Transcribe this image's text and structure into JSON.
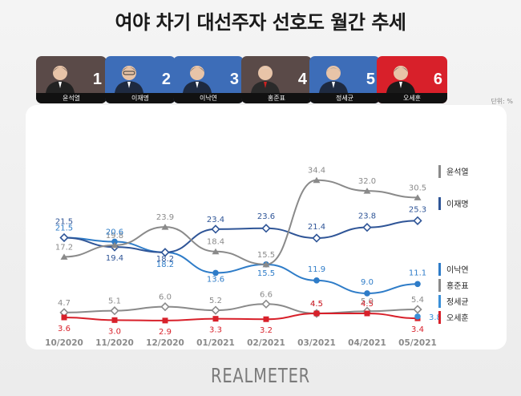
{
  "title": "여야 차기 대선주자 선호도 월간 추세",
  "unit_label": "단위: %",
  "brand": "REALMETER",
  "candidates": [
    {
      "name": "윤석열",
      "rank": "1",
      "color": "#5a4a48"
    },
    {
      "name": "이재명",
      "rank": "2",
      "color": "#3d6db8"
    },
    {
      "name": "이낙연",
      "rank": "3",
      "color": "#3d6db8"
    },
    {
      "name": "홍준표",
      "rank": "4",
      "color": "#5a4a48"
    },
    {
      "name": "정세균",
      "rank": "5",
      "color": "#3d6db8"
    },
    {
      "name": "오세훈",
      "rank": "6",
      "color": "#d8202a"
    }
  ],
  "chart_data": {
    "type": "line",
    "title": "여야 차기 대선주자 선호도 월간 추세",
    "xlabel": "",
    "ylabel": "",
    "unit": "%",
    "categories": [
      "10/2020",
      "11/2020",
      "12/2020",
      "01/2021",
      "02/2021",
      "03/2021",
      "04/2021",
      "05/2021"
    ],
    "ylim": [
      0,
      40
    ],
    "grid": false,
    "legend_position": "right",
    "series": [
      {
        "name": "윤석열",
        "values": [
          17.2,
          19.8,
          23.9,
          18.4,
          15.5,
          34.4,
          32.0,
          30.5
        ],
        "labels": [
          "17.2",
          "19.8",
          "23.9",
          "18.4",
          "15.5",
          "34.4",
          "32.0",
          "30.5"
        ],
        "color": "#8a8a8a",
        "marker": "triangle"
      },
      {
        "name": "이재명",
        "values": [
          21.5,
          19.4,
          18.2,
          23.4,
          23.6,
          21.4,
          23.8,
          25.3
        ],
        "labels": [
          "21.5",
          "19.4",
          "18.2",
          "23.4",
          "23.6",
          "21.4",
          "23.8",
          "25.3"
        ],
        "color": "#2f5597",
        "marker": "diamond"
      },
      {
        "name": "이낙연",
        "values": [
          21.5,
          20.6,
          18.2,
          13.6,
          15.5,
          11.9,
          9.0,
          11.1
        ],
        "labels": [
          "21.5",
          "20.6",
          "18.2",
          "13.6",
          "15.5",
          "11.9",
          "9.0",
          "11.1"
        ],
        "color": "#2e7cc8",
        "marker": "circle"
      },
      {
        "name": "홍준표",
        "values": [
          4.7,
          5.1,
          6.0,
          5.2,
          6.6,
          4.5,
          5.0,
          5.4
        ],
        "labels": [
          "4.7",
          "5.1",
          "6.0",
          "5.2",
          "6.6",
          "4.5",
          "5.0",
          "5.4"
        ],
        "color": "#8a8a8a",
        "marker": "diamond"
      },
      {
        "name": "정세균",
        "values": [
          null,
          null,
          null,
          null,
          null,
          null,
          null,
          3.8
        ],
        "labels": [
          "",
          "",
          "",
          "",
          "",
          "",
          "",
          "3.8"
        ],
        "color": "#3a8fd8",
        "marker": "circle"
      },
      {
        "name": "오세훈",
        "values": [
          3.6,
          3.0,
          2.9,
          3.3,
          3.2,
          4.5,
          4.5,
          3.4
        ],
        "labels": [
          "3.6",
          "3.0",
          "2.9",
          "3.3",
          "3.2",
          "4.5",
          "4.5",
          "3.4"
        ],
        "color": "#d8202a",
        "marker": "square"
      }
    ]
  }
}
